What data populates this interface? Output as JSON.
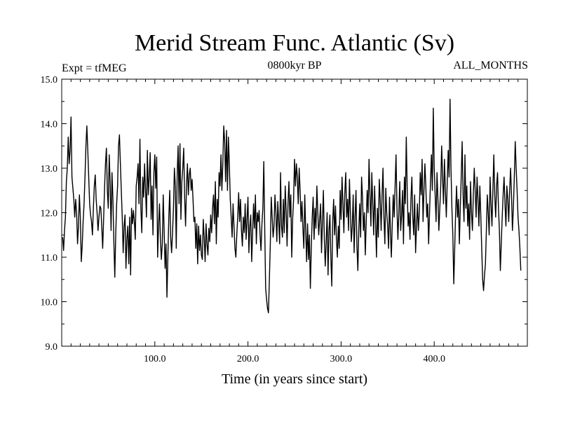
{
  "header": {
    "left": "Expt = tfMEG",
    "center": "0800kyr BP",
    "right": "ALL_MONTHS"
  },
  "colors": {
    "background": "#ffffff",
    "line": "#000000",
    "axes": "#000000"
  },
  "chart_data": {
    "type": "line",
    "title": "Merid Stream Func. Atlantic (Sv)",
    "xlabel": "Time (in years since start)",
    "ylabel": "",
    "xlim": [
      0,
      500
    ],
    "ylim": [
      9.0,
      15.0
    ],
    "xticks": [
      100.0,
      200.0,
      300.0,
      400.0
    ],
    "xtick_labels": [
      "100.0",
      "200.0",
      "300.0",
      "400.0"
    ],
    "yticks": [
      9.0,
      10.0,
      11.0,
      12.0,
      13.0,
      14.0,
      15.0
    ],
    "ytick_labels": [
      "9.0",
      "10.0",
      "11.0",
      "12.0",
      "13.0",
      "14.0",
      "15.0"
    ],
    "grid": false,
    "series": [
      {
        "name": "Merid Stream Func. Atlantic",
        "x_start": 1,
        "x_step": 1,
        "values": [
          11.45,
          11.15,
          11.6,
          11.9,
          12.7,
          13.0,
          13.7,
          13.1,
          13.4,
          14.15,
          12.8,
          12.55,
          12.3,
          11.9,
          12.3,
          12.0,
          11.3,
          11.7,
          12.4,
          11.9,
          10.9,
          11.25,
          11.8,
          12.2,
          12.8,
          13.5,
          13.95,
          13.4,
          12.8,
          12.2,
          11.95,
          11.8,
          11.5,
          12.1,
          12.6,
          12.85,
          12.3,
          12.0,
          11.6,
          11.9,
          12.15,
          12.1,
          11.7,
          11.2,
          11.85,
          12.55,
          13.1,
          13.45,
          12.5,
          12.1,
          13.3,
          12.7,
          11.6,
          12.9,
          12.3,
          11.35,
          10.55,
          11.5,
          12.2,
          12.6,
          13.5,
          13.75,
          13.1,
          12.5,
          11.9,
          11.1,
          11.7,
          11.95,
          10.75,
          11.4,
          11.7,
          10.85,
          11.9,
          10.6,
          12.1,
          11.75,
          12.05,
          11.8,
          11.4,
          12.6,
          12.8,
          13.1,
          12.2,
          13.65,
          12.1,
          11.55,
          12.8,
          12.35,
          13.1,
          12.5,
          11.9,
          13.4,
          12.4,
          12.8,
          13.35,
          11.85,
          12.6,
          11.5,
          12.9,
          13.3,
          12.55,
          13.25,
          11.0,
          11.7,
          12.2,
          11.4,
          10.95,
          11.3,
          12.4,
          11.6,
          10.75,
          11.3,
          10.1,
          11.0,
          11.9,
          12.5,
          11.45,
          11.1,
          11.55,
          12.1,
          13.0,
          12.6,
          11.2,
          12.85,
          13.5,
          12.2,
          13.55,
          11.85,
          12.7,
          13.0,
          13.45,
          12.35,
          11.7,
          12.6,
          13.1,
          12.4,
          12.85,
          13.0,
          12.5,
          12.75,
          12.3,
          11.8,
          11.9,
          11.2,
          11.75,
          10.85,
          11.7,
          11.15,
          11.5,
          11.05,
          10.95,
          11.85,
          11.45,
          10.9,
          11.75,
          11.3,
          11.05,
          11.65,
          11.35,
          11.95,
          11.55,
          12.1,
          12.4,
          11.75,
          12.7,
          11.3,
          12.3,
          11.9,
          12.9,
          12.6,
          13.3,
          12.5,
          13.1,
          13.95,
          13.6,
          12.7,
          13.85,
          12.5,
          13.7,
          13.1,
          12.3,
          11.9,
          11.45,
          12.2,
          11.7,
          11.2,
          11.0,
          11.5,
          11.9,
          12.45,
          11.8,
          12.3,
          11.6,
          11.25,
          11.9,
          11.55,
          12.2,
          11.4,
          11.85,
          12.35,
          11.1,
          11.7,
          11.95,
          10.9,
          11.55,
          12.2,
          11.65,
          12.4,
          11.3,
          12.0,
          11.8,
          12.05,
          11.5,
          11.15,
          11.75,
          12.1,
          13.15,
          11.65,
          10.3,
          10.05,
          9.85,
          9.75,
          10.5,
          11.3,
          12.35,
          11.9,
          11.45,
          11.7,
          12.4,
          12.0,
          11.35,
          12.25,
          11.8,
          11.3,
          12.9,
          11.7,
          11.45,
          12.3,
          11.55,
          12.6,
          12.05,
          11.25,
          12.2,
          12.7,
          11.9,
          12.4,
          11.0,
          11.85,
          12.3,
          13.2,
          12.6,
          13.1,
          12.8,
          12.2,
          13.0,
          12.5,
          11.8,
          12.25,
          11.65,
          11.2,
          12.4,
          11.6,
          10.9,
          11.75,
          10.95,
          11.5,
          10.3,
          11.2,
          11.9,
          12.35,
          11.4,
          12.1,
          11.65,
          12.6,
          12.0,
          11.5,
          11.85,
          12.2,
          11.1,
          11.8,
          12.5,
          11.4,
          10.8,
          11.35,
          12.0,
          10.6,
          11.6,
          11.95,
          11.0,
          10.35,
          11.8,
          12.3,
          11.5,
          12.15,
          11.4,
          11.0,
          11.7,
          11.2,
          12.5,
          11.85,
          12.8,
          12.2,
          11.55,
          12.45,
          12.9,
          11.9,
          12.3,
          11.6,
          12.75,
          12.0,
          11.35,
          11.7,
          12.4,
          11.1,
          11.9,
          12.5,
          11.25,
          10.7,
          11.6,
          12.2,
          11.45,
          12.8,
          12.35,
          11.6,
          12.0,
          11.05,
          11.8,
          12.5,
          12.0,
          13.2,
          12.4,
          11.7,
          12.9,
          12.2,
          11.5,
          12.6,
          11.8,
          11.0,
          12.1,
          11.45,
          12.75,
          12.3,
          11.6,
          12.4,
          13.0,
          11.9,
          11.3,
          12.55,
          12.0,
          11.7,
          11.2,
          12.35,
          11.55,
          11.0,
          11.8,
          12.4,
          11.9,
          12.6,
          13.3,
          12.1,
          11.4,
          12.0,
          12.7,
          11.6,
          11.95,
          12.5,
          11.3,
          12.8,
          12.2,
          13.7,
          12.5,
          11.7,
          12.0,
          11.4,
          12.3,
          12.8,
          11.9,
          11.5,
          12.4,
          11.1,
          11.7,
          12.2,
          11.6,
          12.0,
          12.9,
          12.4,
          13.2,
          11.8,
          12.5,
          13.1,
          12.6,
          11.9,
          12.2,
          11.3,
          12.0,
          12.7,
          13.3,
          12.5,
          14.35,
          13.0,
          12.4,
          11.8,
          12.9,
          12.3,
          11.6,
          12.1,
          12.6,
          13.5,
          12.8,
          12.2,
          13.2,
          12.5,
          11.9,
          12.7,
          13.4,
          12.8,
          14.55,
          13.0,
          12.1,
          11.5,
          10.4,
          11.2,
          12.0,
          12.6,
          11.9,
          12.3,
          11.3,
          12.1,
          12.8,
          13.6,
          12.4,
          11.8,
          13.3,
          12.1,
          12.6,
          11.7,
          12.2,
          11.4,
          12.7,
          12.0,
          11.6,
          12.4,
          13.0,
          12.5,
          11.9,
          12.8,
          12.3,
          11.7,
          12.6,
          11.95,
          11.2,
          10.5,
          10.25,
          10.6,
          10.85,
          11.6,
          12.4,
          12.0,
          11.5,
          12.8,
          12.2,
          11.7,
          12.5,
          13.3,
          12.4,
          11.9,
          12.6,
          12.9,
          12.1,
          11.6,
          10.7,
          11.3,
          11.9,
          12.4,
          12.8,
          12.2,
          11.7,
          12.6,
          12.3,
          11.8,
          12.5,
          13.0,
          12.4,
          11.6,
          12.1,
          12.8,
          13.6,
          13.0,
          12.5,
          11.9,
          11.6,
          11.2,
          10.7
        ]
      }
    ]
  }
}
